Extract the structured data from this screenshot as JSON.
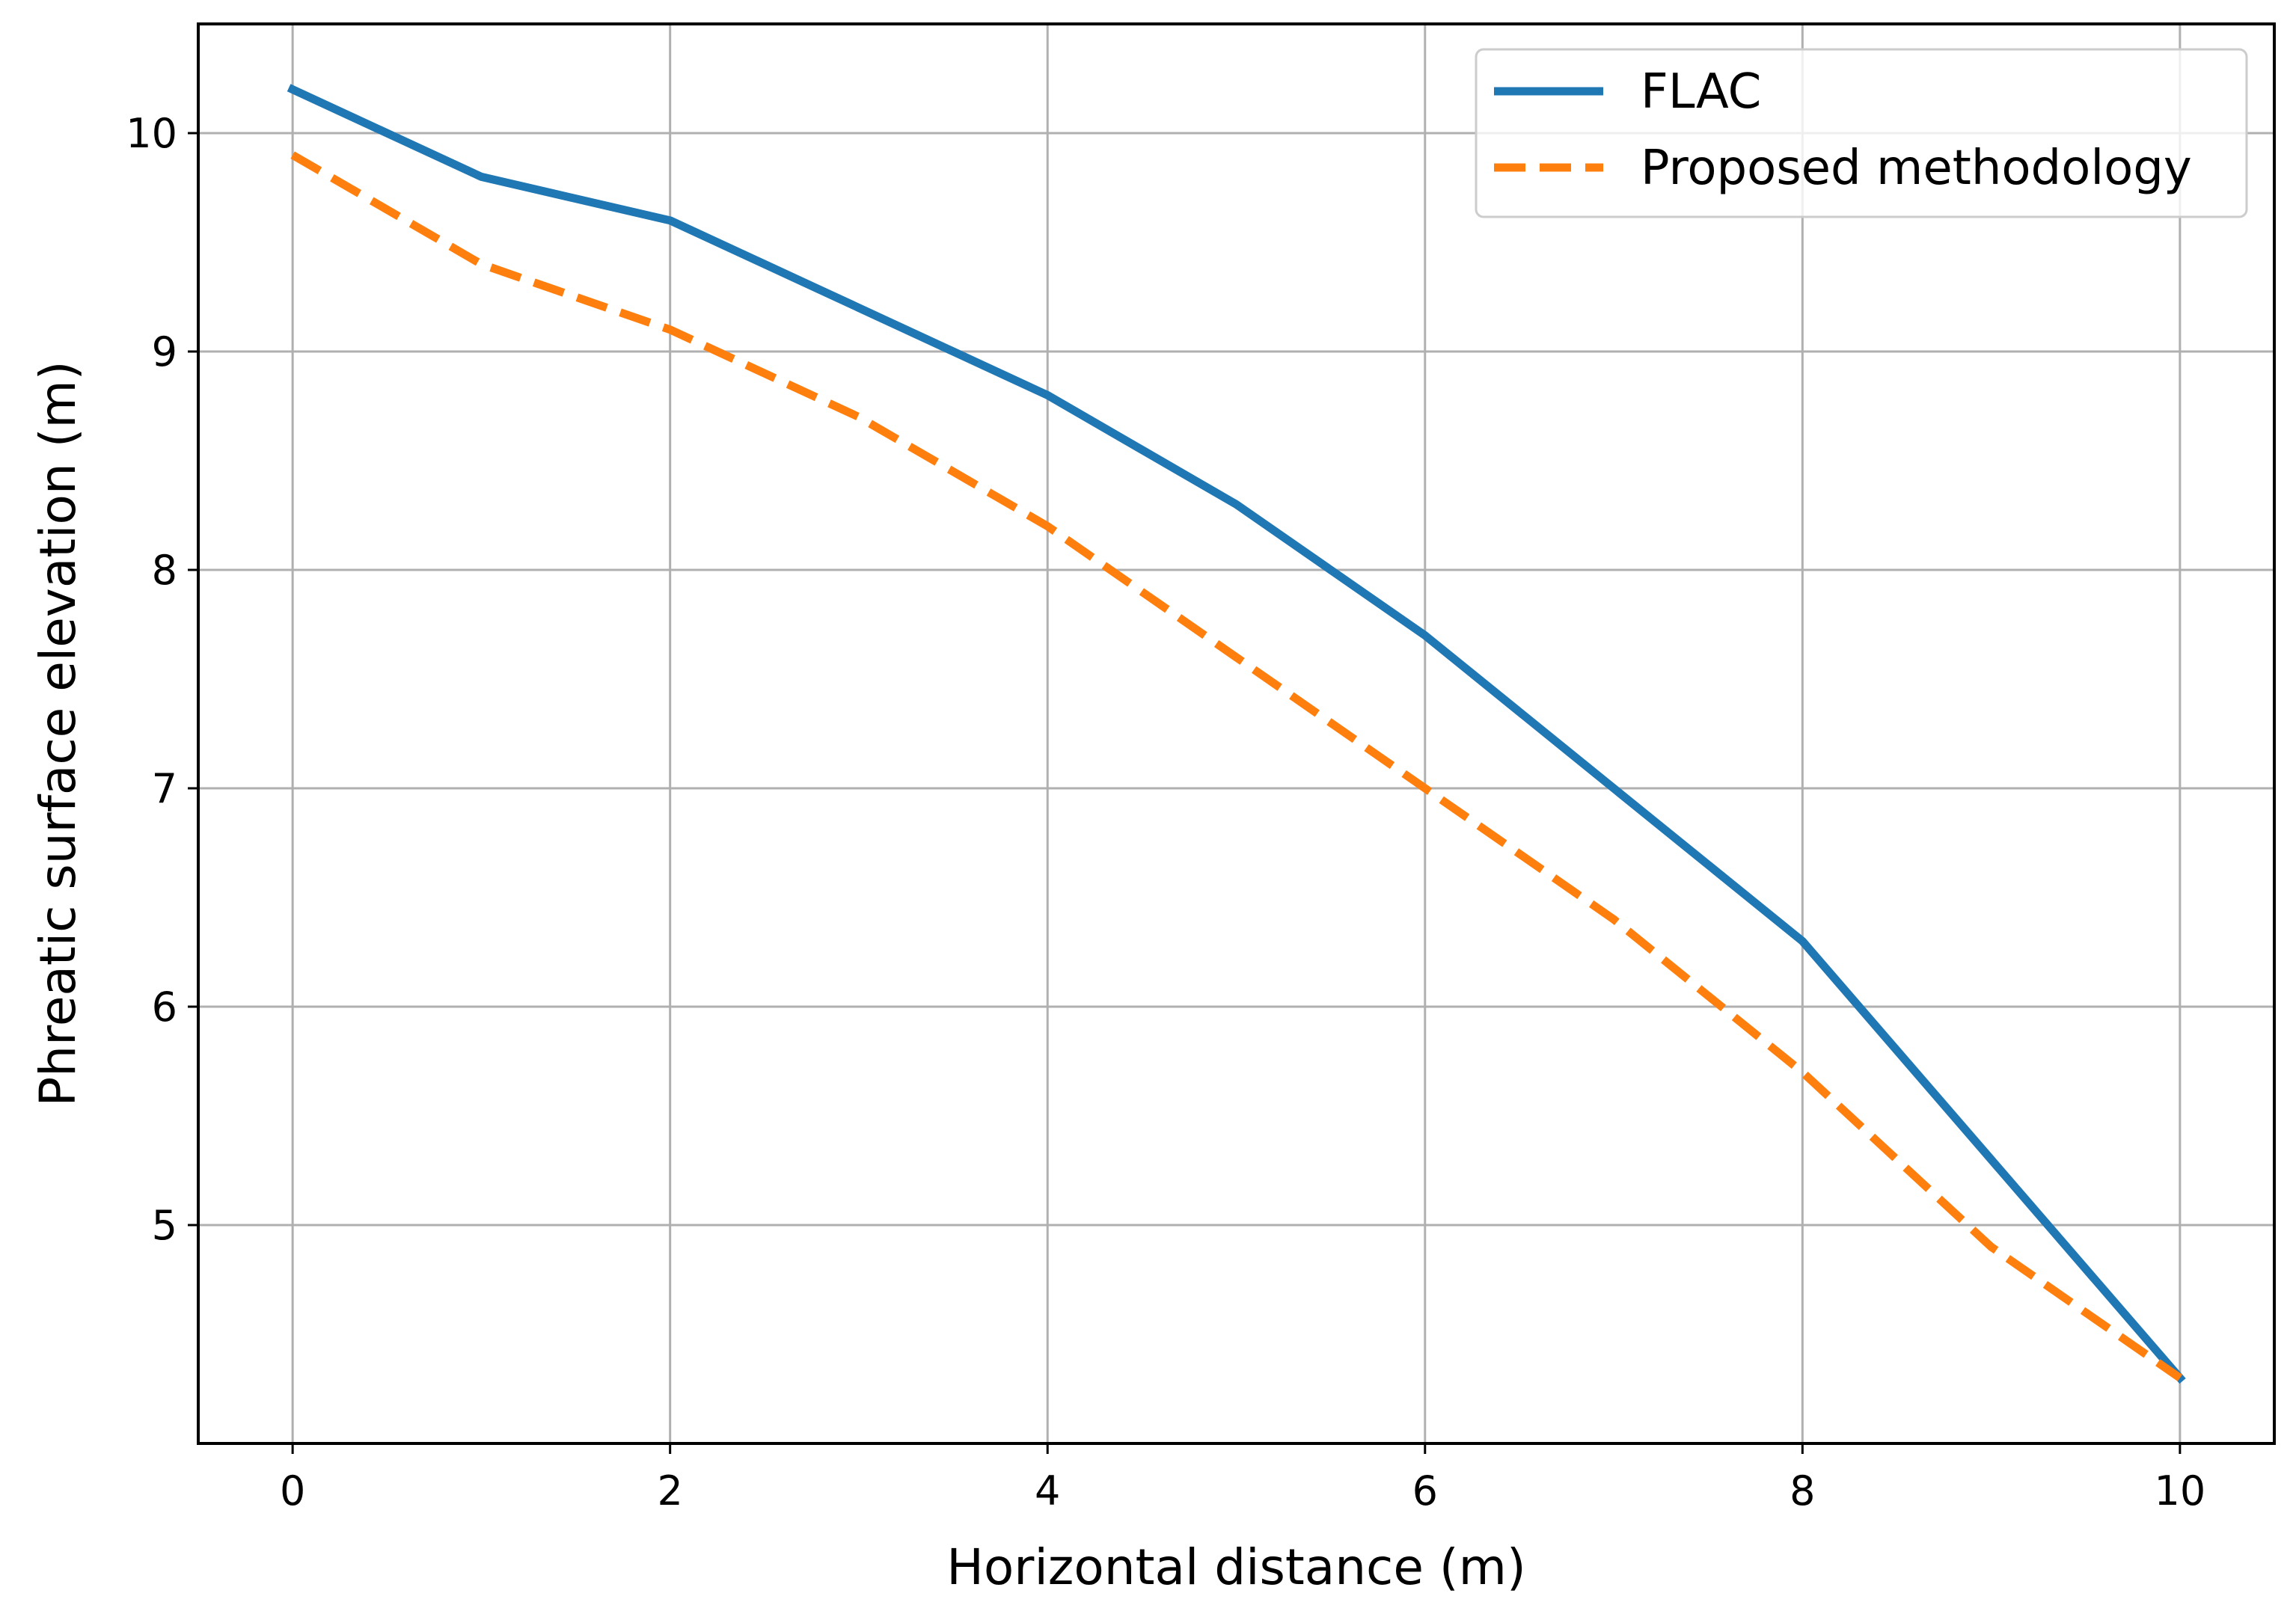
{
  "chart_data": {
    "type": "line",
    "title": "",
    "xlabel": "Horizontal distance (m)",
    "ylabel": "Phreatic surface elevation (m)",
    "xlim": [
      -0.5,
      10.5
    ],
    "ylim": [
      4.0,
      10.5
    ],
    "xticks": [
      0,
      2,
      4,
      6,
      8,
      10
    ],
    "yticks": [
      5,
      6,
      7,
      8,
      9,
      10
    ],
    "grid": true,
    "legend_position": "top-right",
    "series": [
      {
        "name": "FLAC",
        "color": "#1f77b4",
        "linestyle": "solid",
        "x": [
          0,
          1,
          2,
          3,
          4,
          5,
          6,
          7,
          8,
          9,
          10
        ],
        "y": [
          10.2,
          9.8,
          9.6,
          9.2,
          8.8,
          8.3,
          7.7,
          7.0,
          6.3,
          5.3,
          4.3
        ]
      },
      {
        "name": "Proposed methodology",
        "color": "#ff7f0e",
        "linestyle": "dashed",
        "x": [
          0,
          1,
          2,
          3,
          4,
          5,
          6,
          7,
          8,
          9,
          10
        ],
        "y": [
          9.9,
          9.4,
          9.1,
          8.7,
          8.2,
          7.6,
          7.0,
          6.4,
          5.7,
          4.9,
          4.3
        ]
      }
    ]
  }
}
